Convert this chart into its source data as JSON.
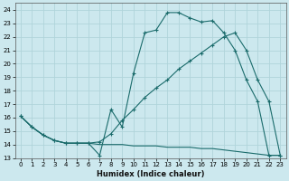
{
  "xlabel": "Humidex (Indice chaleur)",
  "bg_color": "#cce8ee",
  "grid_color": "#b0d4da",
  "line_color": "#1a6b6b",
  "xlim": [
    -0.5,
    23.5
  ],
  "ylim": [
    13,
    24.5
  ],
  "xticks": [
    0,
    1,
    2,
    3,
    4,
    5,
    6,
    7,
    8,
    9,
    10,
    11,
    12,
    13,
    14,
    15,
    16,
    17,
    18,
    19,
    20,
    21,
    22,
    23
  ],
  "yticks": [
    13,
    14,
    15,
    16,
    17,
    18,
    19,
    20,
    21,
    22,
    23,
    24
  ],
  "line1_x": [
    0,
    1,
    2,
    3,
    4,
    5,
    6,
    7,
    8,
    9,
    10,
    11,
    12,
    13,
    14,
    15,
    16,
    17,
    18,
    19,
    20,
    21,
    22,
    23
  ],
  "line1_y": [
    16.1,
    15.3,
    14.7,
    14.3,
    14.1,
    14.1,
    14.1,
    13.2,
    16.6,
    15.3,
    19.3,
    22.3,
    22.5,
    23.8,
    23.8,
    23.4,
    23.1,
    23.2,
    22.3,
    21.0,
    18.8,
    17.2,
    13.2,
    13.2
  ],
  "line2_x": [
    0,
    1,
    2,
    3,
    4,
    5,
    6,
    7,
    8,
    9,
    10,
    11,
    12,
    13,
    14,
    15,
    16,
    17,
    18,
    19,
    20,
    21,
    22,
    23
  ],
  "line2_y": [
    16.1,
    15.3,
    14.7,
    14.3,
    14.1,
    14.1,
    14.1,
    14.0,
    14.0,
    14.0,
    13.9,
    13.9,
    13.9,
    13.8,
    13.8,
    13.8,
    13.7,
    13.7,
    13.6,
    13.5,
    13.4,
    13.3,
    13.2,
    13.2
  ],
  "line3_x": [
    0,
    1,
    2,
    3,
    4,
    5,
    6,
    7,
    8,
    9,
    10,
    11,
    12,
    13,
    14,
    15,
    16,
    17,
    18,
    19,
    20,
    21,
    22,
    23
  ],
  "line3_y": [
    16.1,
    15.3,
    14.7,
    14.3,
    14.1,
    14.1,
    14.1,
    14.2,
    14.8,
    15.8,
    16.6,
    17.5,
    18.2,
    18.8,
    19.6,
    20.2,
    20.8,
    21.4,
    22.0,
    22.3,
    21.0,
    18.8,
    17.2,
    13.2
  ]
}
